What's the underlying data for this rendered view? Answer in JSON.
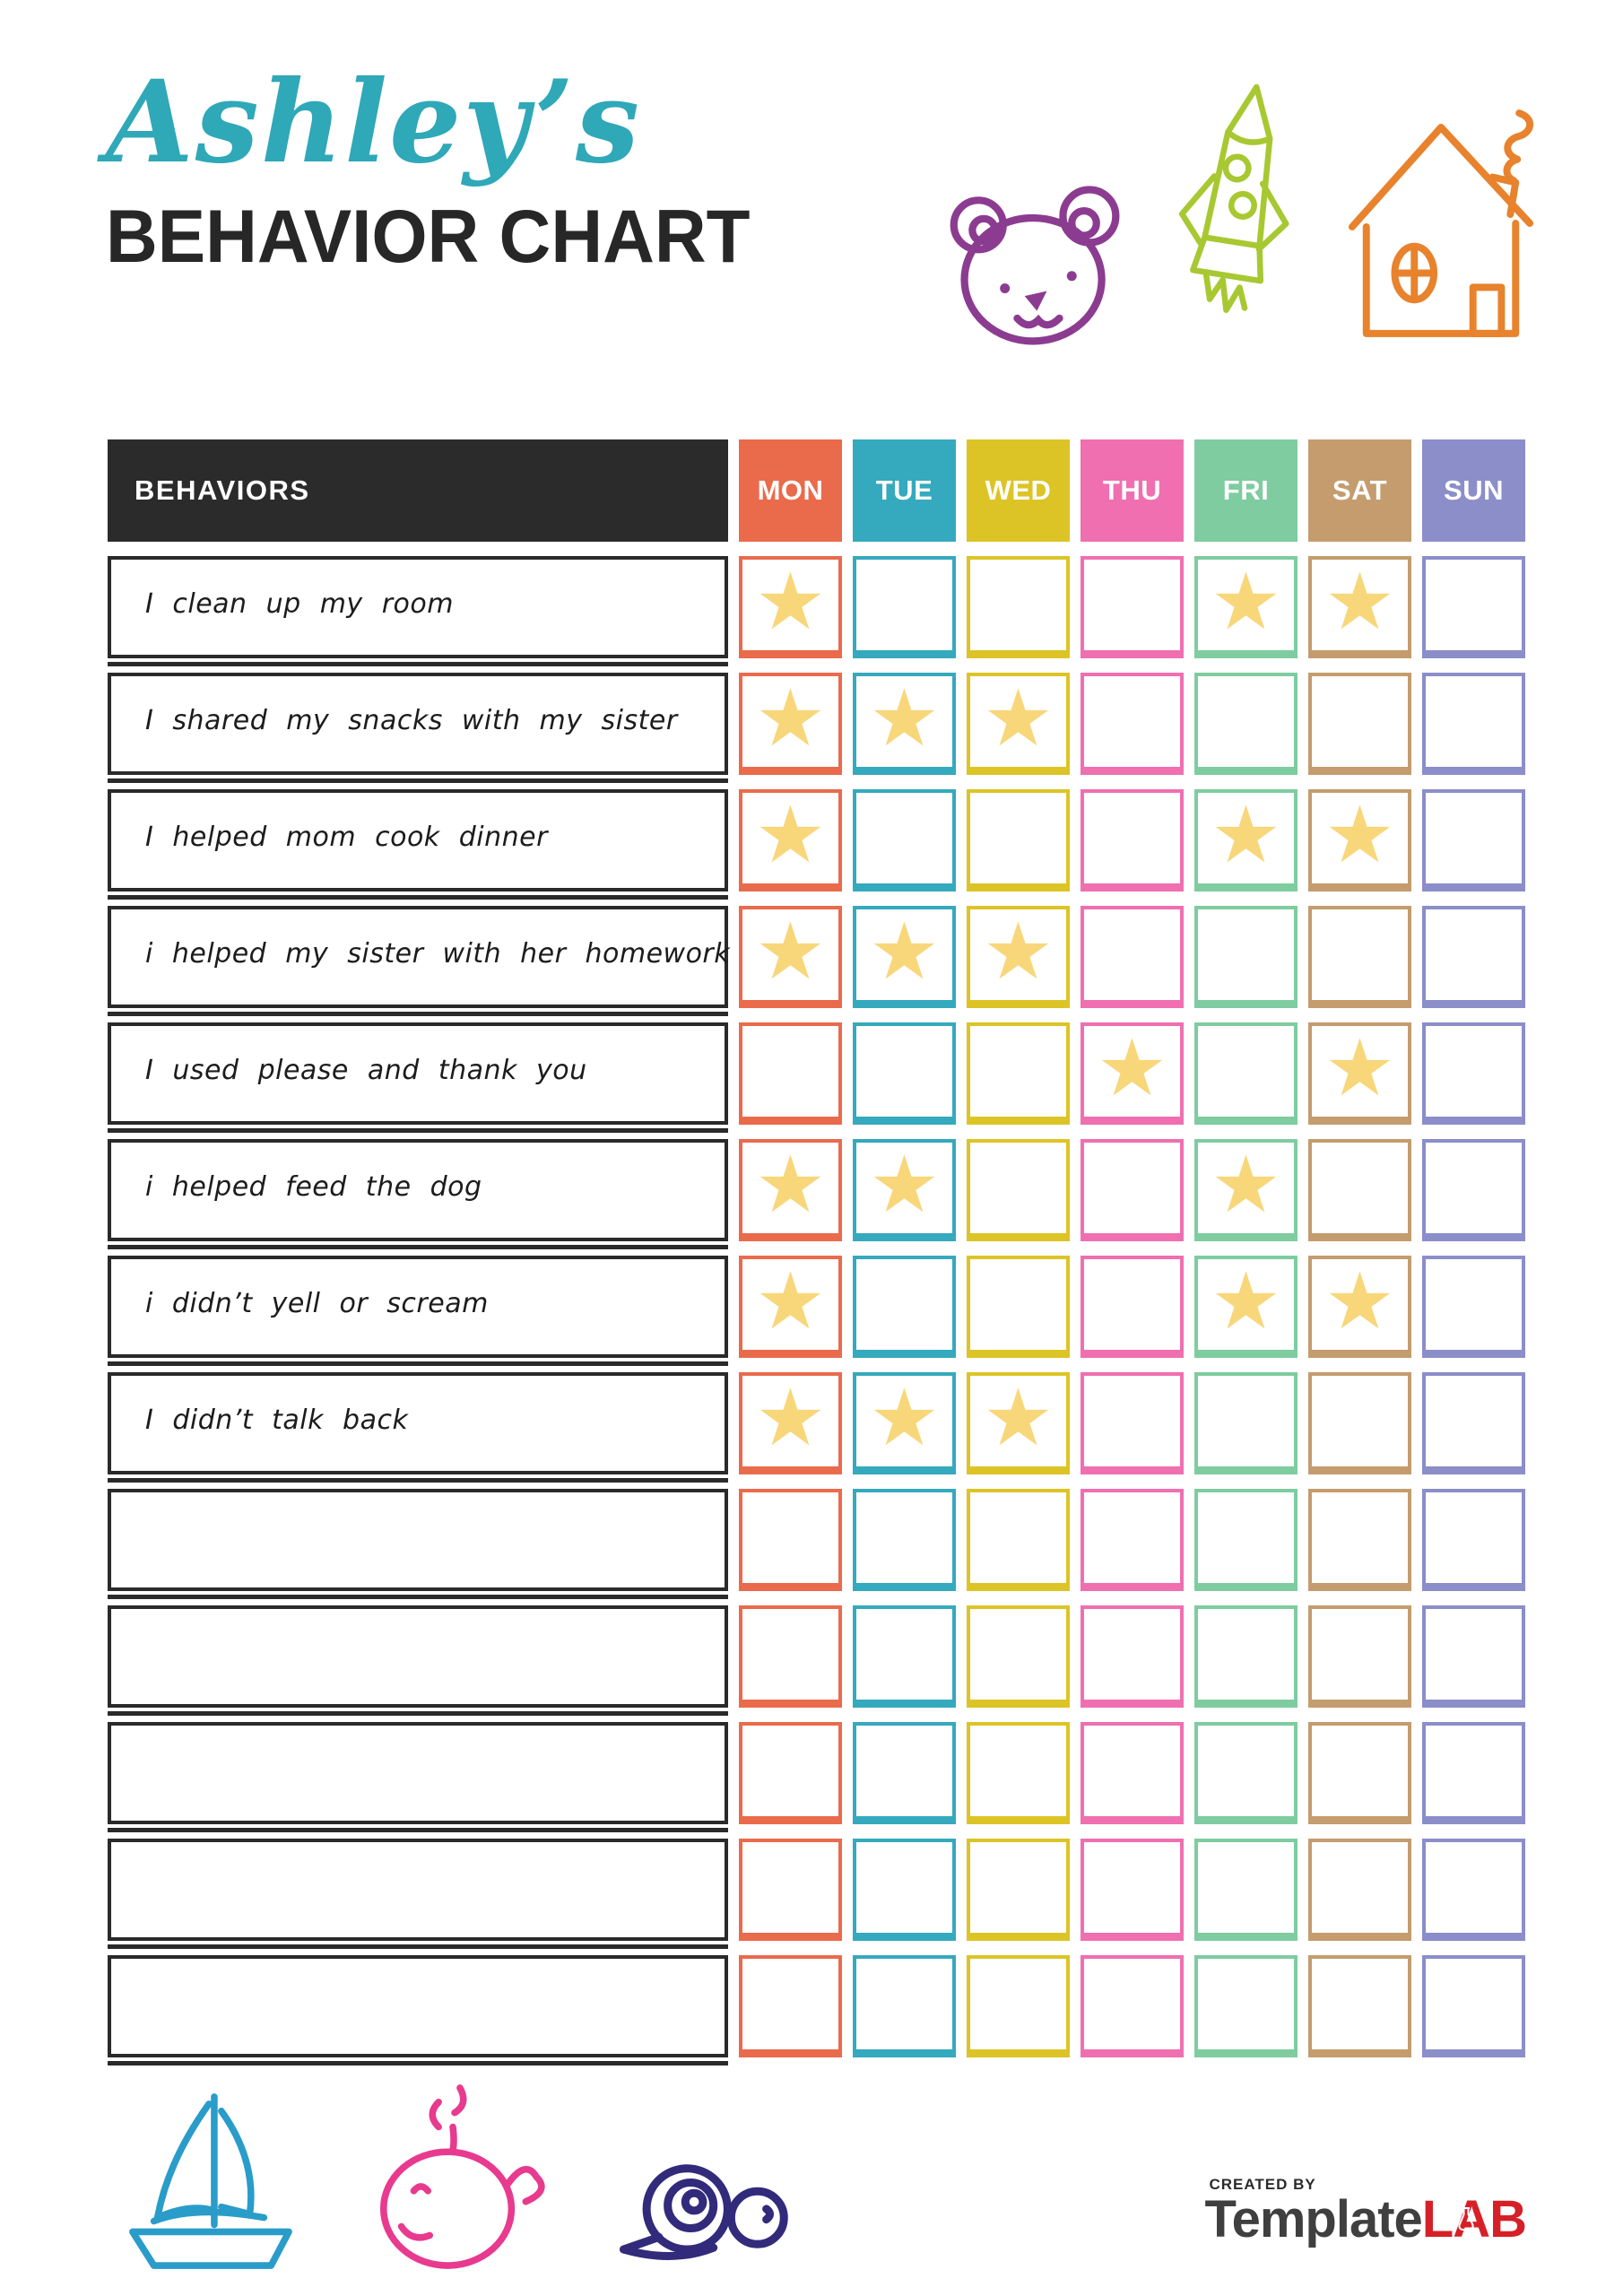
{
  "header": {
    "name_possessive": "Ashley’s",
    "title": "BEHAVIOR CHART",
    "accent_color": "#2fa8b8",
    "title_color": "#272727"
  },
  "decorations": {
    "top": [
      {
        "name": "teddy-bear",
        "color": "#8c3c90"
      },
      {
        "name": "rocket",
        "color": "#a8c832"
      },
      {
        "name": "house",
        "color": "#e8822d"
      }
    ],
    "bottom": [
      {
        "name": "sailboat",
        "color": "#2a9cc9"
      },
      {
        "name": "whale",
        "color": "#e83a8e"
      },
      {
        "name": "snail",
        "color": "#322a7a"
      }
    ]
  },
  "table": {
    "behaviors_header": "BEHAVIORS",
    "header_bg": "#2b2b2b",
    "star_color": "#f8d67a",
    "star_glyph": "★",
    "days": [
      {
        "label": "MON",
        "color": "#e96b4c"
      },
      {
        "label": "TUE",
        "color": "#35a9bd"
      },
      {
        "label": "WED",
        "color": "#dcc426"
      },
      {
        "label": "THU",
        "color": "#ef6fb0"
      },
      {
        "label": "FRI",
        "color": "#7ecc9f"
      },
      {
        "label": "SAT",
        "color": "#c49c6e"
      },
      {
        "label": "SUN",
        "color": "#8b8ec8"
      }
    ],
    "rows": [
      {
        "behavior": "I clean up my room",
        "stars": [
          1,
          0,
          0,
          0,
          1,
          1,
          0
        ]
      },
      {
        "behavior": "I shared my snacks with my sister",
        "stars": [
          1,
          1,
          1,
          0,
          0,
          0,
          0
        ]
      },
      {
        "behavior": "I helped mom cook dinner",
        "stars": [
          1,
          0,
          0,
          0,
          1,
          1,
          0
        ]
      },
      {
        "behavior": "i helped my sister with her homework",
        "stars": [
          1,
          1,
          1,
          0,
          0,
          0,
          0
        ]
      },
      {
        "behavior": "I used please and thank you",
        "stars": [
          0,
          0,
          0,
          1,
          0,
          1,
          0
        ]
      },
      {
        "behavior": "i helped feed the dog",
        "stars": [
          1,
          1,
          0,
          0,
          1,
          0,
          0
        ]
      },
      {
        "behavior": "i didn’t yell or scream",
        "stars": [
          1,
          0,
          0,
          0,
          1,
          1,
          0
        ]
      },
      {
        "behavior": "I didn’t talk back",
        "stars": [
          1,
          1,
          1,
          0,
          0,
          0,
          0
        ]
      },
      {
        "behavior": "",
        "stars": [
          0,
          0,
          0,
          0,
          0,
          0,
          0
        ]
      },
      {
        "behavior": "",
        "stars": [
          0,
          0,
          0,
          0,
          0,
          0,
          0
        ]
      },
      {
        "behavior": "",
        "stars": [
          0,
          0,
          0,
          0,
          0,
          0,
          0
        ]
      },
      {
        "behavior": "",
        "stars": [
          0,
          0,
          0,
          0,
          0,
          0,
          0
        ]
      },
      {
        "behavior": "",
        "stars": [
          0,
          0,
          0,
          0,
          0,
          0,
          0
        ]
      }
    ]
  },
  "footer": {
    "created_by": "CREATED BY",
    "brand_primary": "Template",
    "brand_accent": "LAB",
    "brand_primary_color": "#3f3f3f",
    "brand_accent_color": "#d62027"
  }
}
